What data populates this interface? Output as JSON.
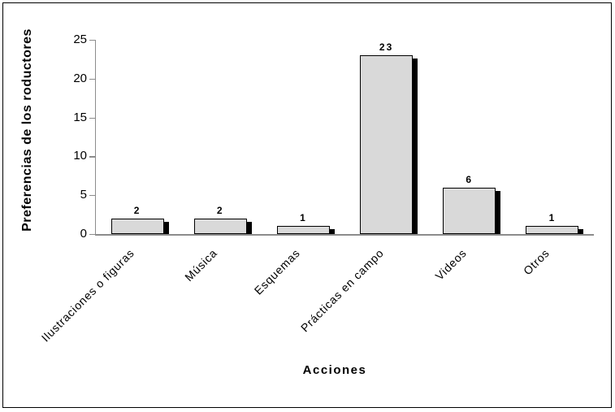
{
  "chart_data": {
    "type": "bar",
    "title": "",
    "categories": [
      "Ilustraciones o figuras",
      "Música",
      "Esquemas",
      "Prácticas en campo",
      "Videos",
      "Otros"
    ],
    "values": [
      2,
      2,
      1,
      23,
      6,
      1
    ],
    "data_labels": [
      "2",
      "2",
      "1",
      "23",
      "6",
      "1"
    ],
    "xlabel": "Acciones",
    "ylabel": "Preferencias de los roductores",
    "yticks": [
      0,
      5,
      10,
      15,
      20,
      25
    ],
    "ylim": [
      0,
      25
    ],
    "grid": false,
    "legend": "none",
    "bar_fill": "#d9d9d9",
    "bar_border": "#000000",
    "bar_shadow": "#000000",
    "axis_color": "#8c8c8c",
    "text_color": "#000000"
  }
}
